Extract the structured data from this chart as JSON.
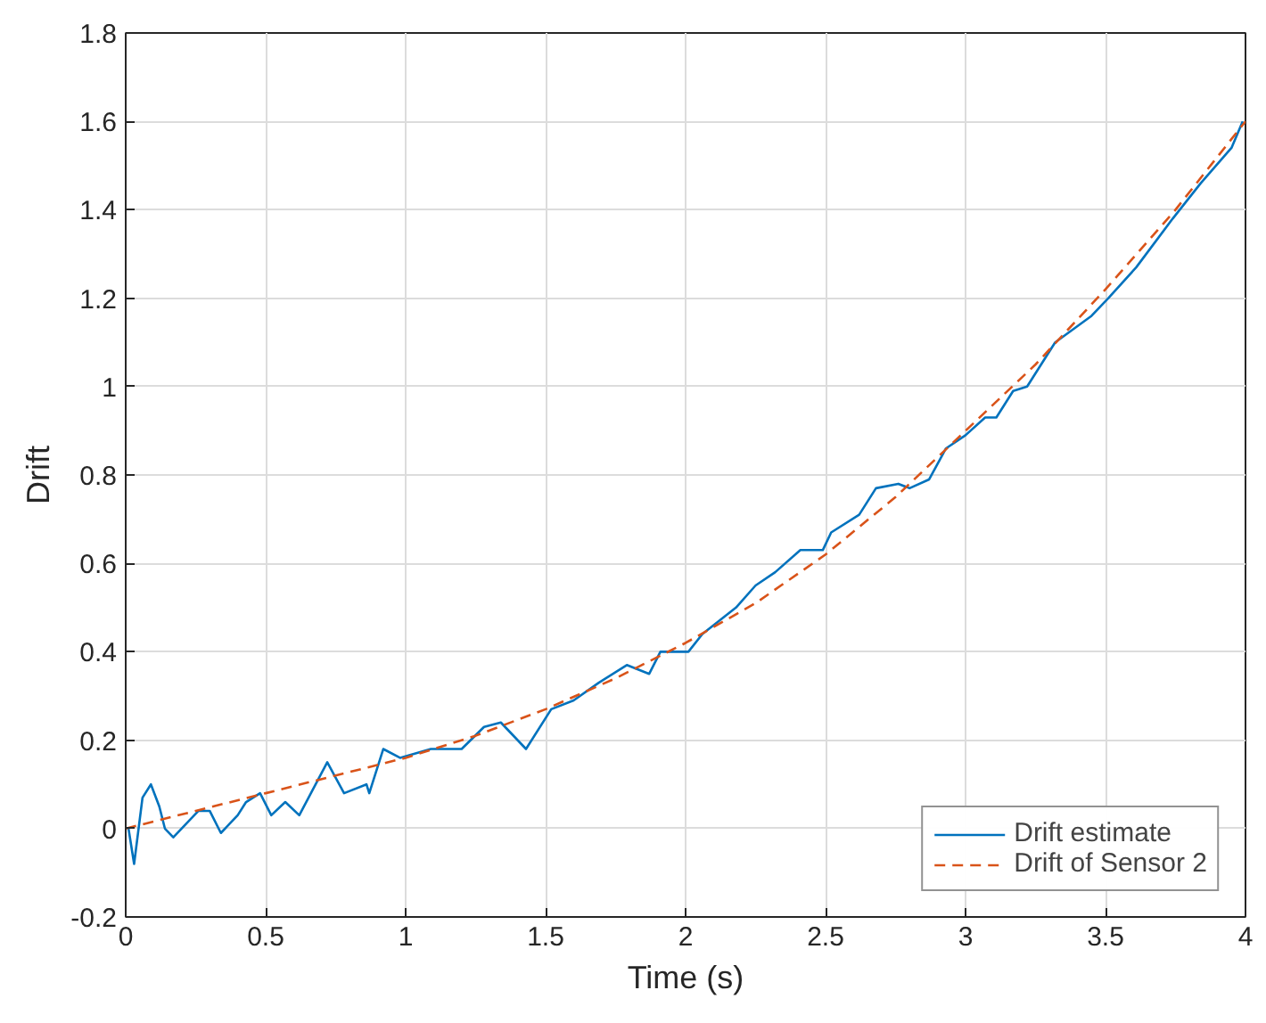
{
  "chart_data": {
    "type": "line",
    "xlabel": "Time (s)",
    "ylabel": "Drift",
    "xlim": [
      0,
      4
    ],
    "ylim": [
      -0.2,
      1.8
    ],
    "xticks": [
      0,
      0.5,
      1,
      1.5,
      2,
      2.5,
      3,
      3.5,
      4
    ],
    "yticks": [
      -0.2,
      0,
      0.2,
      0.4,
      0.6,
      0.8,
      1,
      1.2,
      1.4,
      1.6,
      1.8
    ],
    "grid": true,
    "legend": "bottom right",
    "series": [
      {
        "name": "Drift estimate",
        "color": "#0072bd",
        "line_style": "solid",
        "x": [
          0.01,
          0.03,
          0.06,
          0.09,
          0.12,
          0.14,
          0.17,
          0.26,
          0.3,
          0.34,
          0.4,
          0.43,
          0.48,
          0.52,
          0.57,
          0.62,
          0.72,
          0.78,
          0.86,
          0.87,
          0.92,
          0.98,
          1.09,
          1.2,
          1.28,
          1.34,
          1.43,
          1.52,
          1.6,
          1.69,
          1.79,
          1.87,
          1.91,
          2.01,
          2.06,
          2.18,
          2.25,
          2.32,
          2.41,
          2.49,
          2.52,
          2.62,
          2.68,
          2.76,
          2.8,
          2.87,
          2.93,
          3.0,
          3.07,
          3.11,
          3.17,
          3.22,
          3.32,
          3.45,
          3.51,
          3.61,
          3.74,
          3.84,
          3.95,
          3.99
        ],
        "values": [
          0,
          -0.08,
          0.07,
          0.1,
          0.05,
          0,
          -0.02,
          0.04,
          0.04,
          -0.01,
          0.03,
          0.06,
          0.08,
          0.03,
          0.06,
          0.03,
          0.15,
          0.08,
          0.1,
          0.08,
          0.18,
          0.16,
          0.18,
          0.18,
          0.23,
          0.24,
          0.18,
          0.27,
          0.29,
          0.33,
          0.37,
          0.35,
          0.4,
          0.4,
          0.44,
          0.5,
          0.55,
          0.58,
          0.63,
          0.63,
          0.67,
          0.71,
          0.77,
          0.78,
          0.77,
          0.79,
          0.86,
          0.89,
          0.93,
          0.93,
          0.99,
          1.0,
          1.1,
          1.16,
          1.2,
          1.27,
          1.38,
          1.46,
          1.54,
          1.6
        ]
      },
      {
        "name": "Drift of Sensor 2",
        "color": "#d95319",
        "line_style": "dashed",
        "x": [
          0,
          0.25,
          0.5,
          0.75,
          1,
          1.25,
          1.5,
          1.75,
          2,
          2.25,
          2.5,
          2.75,
          3,
          3.25,
          3.5,
          3.75,
          4
        ],
        "values": [
          0,
          0.04,
          0.08,
          0.12,
          0.16,
          0.21,
          0.27,
          0.34,
          0.42,
          0.51,
          0.62,
          0.75,
          0.9,
          1.05,
          1.22,
          1.4,
          1.6
        ]
      }
    ]
  }
}
